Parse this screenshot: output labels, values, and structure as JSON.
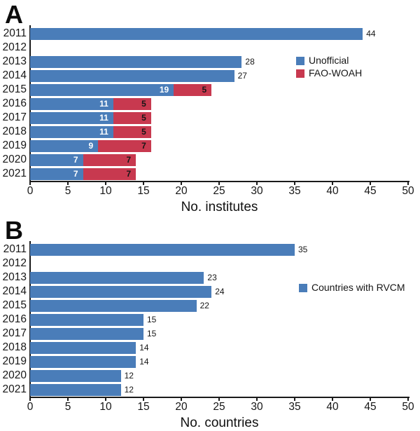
{
  "colors": {
    "background": "#ffffff",
    "axis": "#1a1a1a",
    "text": "#161616",
    "bar_blue": "#4a7db9",
    "bar_red": "#c8394f"
  },
  "chart_data": [
    {
      "type": "bar",
      "orientation": "horizontal",
      "panel_label": "A",
      "xlabel": "No. institutes",
      "xlim": [
        0,
        50
      ],
      "xticks": [
        0,
        5,
        10,
        15,
        20,
        25,
        30,
        35,
        40,
        45,
        50
      ],
      "grid": false,
      "legend_position": "inside-upper-right",
      "categories": [
        "2011",
        "2012",
        "2013",
        "2014",
        "2015",
        "2016",
        "2017",
        "2018",
        "2019",
        "2020",
        "2021"
      ],
      "series": [
        {
          "name": "Unofficial",
          "color": "#4a7db9",
          "inside_label_color": "#ffffff",
          "values": [
            44,
            0,
            28,
            27,
            19,
            11,
            11,
            11,
            9,
            7,
            7
          ]
        },
        {
          "name": "FAO-WOAH",
          "color": "#c8394f",
          "inside_label_color": "#161616",
          "values": [
            0,
            0,
            0,
            0,
            5,
            5,
            5,
            5,
            7,
            7,
            7
          ]
        }
      ]
    },
    {
      "type": "bar",
      "orientation": "horizontal",
      "panel_label": "B",
      "xlabel": "No. countries",
      "xlim": [
        0,
        50
      ],
      "xticks": [
        0,
        5,
        10,
        15,
        20,
        25,
        30,
        35,
        40,
        45,
        50
      ],
      "grid": false,
      "legend_position": "inside-right",
      "categories": [
        "2011",
        "2012",
        "2013",
        "2014",
        "2015",
        "2016",
        "2017",
        "2018",
        "2019",
        "2020",
        "2021"
      ],
      "series": [
        {
          "name": "Countries with RVCM",
          "color": "#4a7db9",
          "inside_label_color": "#ffffff",
          "values": [
            35,
            0,
            23,
            24,
            22,
            15,
            15,
            14,
            14,
            12,
            12
          ]
        }
      ]
    }
  ]
}
